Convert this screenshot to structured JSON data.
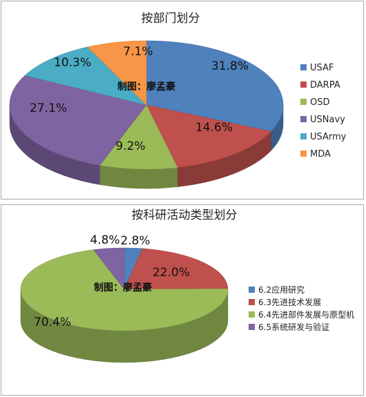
{
  "watermark": "制图：廖孟豪",
  "chart_data": [
    {
      "type": "pie",
      "title": "按部门划分",
      "categories": [
        "USAF",
        "DARPA",
        "OSD",
        "USNavy",
        "USArmy",
        "MDA"
      ],
      "values": [
        31.8,
        14.6,
        9.2,
        27.1,
        10.3,
        7.1
      ],
      "labels": [
        "31.8%",
        "14.6%",
        "9.2%",
        "27.1%",
        "10.3%",
        "7.1%"
      ],
      "colors": [
        "#4f81bd",
        "#c0504d",
        "#9bbb59",
        "#8064a2",
        "#4bacc6",
        "#f79646"
      ],
      "legend_position": "right"
    },
    {
      "type": "pie",
      "title": "按科研活动类型划分",
      "categories": [
        "6.2应用研究",
        "6.3先进技术发展",
        "6.4先进部件发展与原型机",
        "6.5系统研发与验证"
      ],
      "values": [
        2.8,
        22.0,
        70.4,
        4.8
      ],
      "labels": [
        "2.8%",
        "22.0%",
        "70.4%",
        "4.8%"
      ],
      "colors": [
        "#4f81bd",
        "#c0504d",
        "#9bbb59",
        "#8064a2"
      ],
      "legend_position": "right"
    }
  ]
}
